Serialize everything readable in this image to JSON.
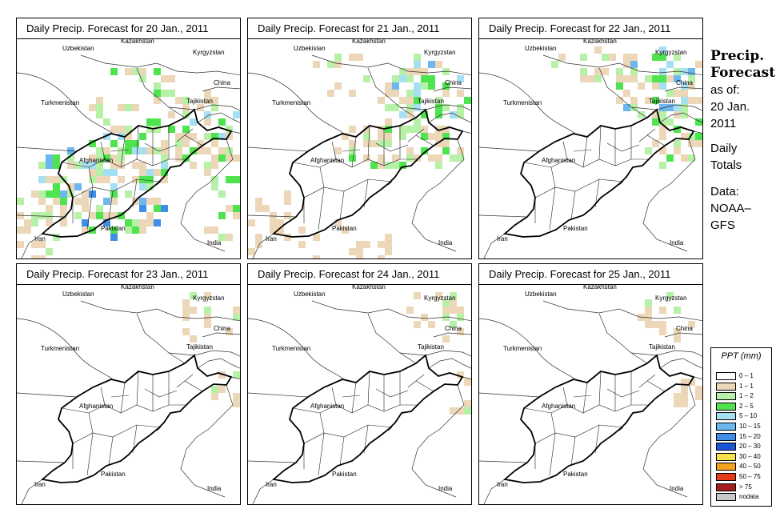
{
  "panels": [
    {
      "title": "Daily Precip. Forecast for  20 Jan., 2011",
      "level": 3
    },
    {
      "title": "Daily Precip. Forecast for  21 Jan., 2011",
      "level": 2
    },
    {
      "title": "Daily Precip. Forecast for  22 Jan., 2011",
      "level": 1
    },
    {
      "title": "Daily Precip. Forecast for  23 Jan., 2011",
      "level": 0
    },
    {
      "title": "Daily Precip. Forecast for  24 Jan., 2011",
      "level": 0
    },
    {
      "title": "Daily Precip. Forecast for  25 Jan., 2011",
      "level": 0
    }
  ],
  "map_labels": {
    "uzbekistan": "Uzbekistan",
    "kazakhstan": "Kazakhstan",
    "kyrgyzstan": "Kyrgyzstan",
    "china": "China",
    "turkmenistan": "Turkmenistan",
    "tajikistan": "Tajikistan",
    "afghanistan": "Afghanistan",
    "pakistan": "Pakistan",
    "iran": "Iran",
    "india": "India"
  },
  "side": {
    "heading1": "Precip.",
    "heading2": "Forecast",
    "asof": "as of:",
    "date1": "20 Jan.",
    "date2": "2011",
    "daily": "Daily",
    "totals": "Totals",
    "data": "Data:",
    "source1": "NOAA–",
    "source2": "GFS"
  },
  "legend": {
    "title": "PPT (mm)",
    "items": [
      {
        "label": "0 – 1",
        "color": "#ffffff"
      },
      {
        "label": "1 – 1",
        "color": "#ecd7b8"
      },
      {
        "label": "1 – 2",
        "color": "#b7f0a7"
      },
      {
        "label": "2 – 5",
        "color": "#4fe34f"
      },
      {
        "label": "5 – 10",
        "color": "#a6dff2"
      },
      {
        "label": "10 – 15",
        "color": "#6cb8ee"
      },
      {
        "label": "15 – 20",
        "color": "#3f8fe6"
      },
      {
        "label": "20 – 30",
        "color": "#1a55d8"
      },
      {
        "label": "30 – 40",
        "color": "#f7e04a"
      },
      {
        "label": "40 – 50",
        "color": "#f4a21c"
      },
      {
        "label": "50 – 75",
        "color": "#e43c16"
      },
      {
        "label": "> 75",
        "color": "#a41c1c"
      },
      {
        "label": "nodata",
        "color": "#c8c8c8"
      }
    ]
  }
}
